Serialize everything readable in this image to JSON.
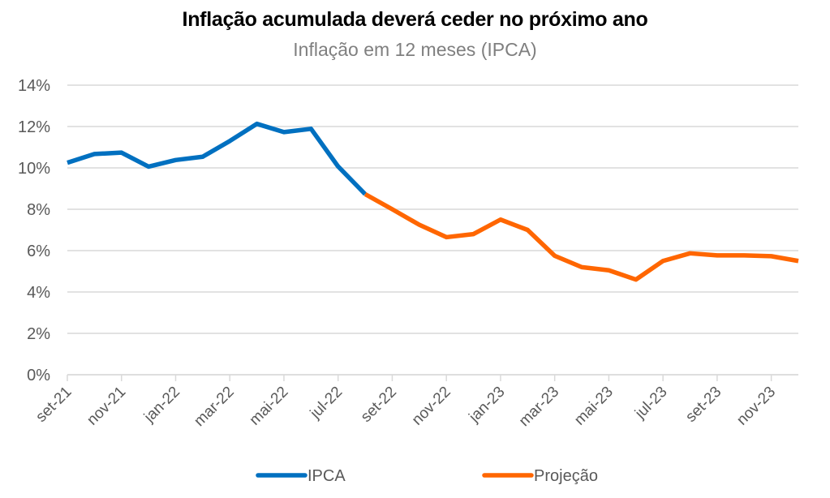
{
  "chart_data": {
    "type": "line",
    "title": "Inflação acumulada deverá ceder no próximo ano",
    "subtitle": "Inflação em 12 meses (IPCA)",
    "xlabel": "",
    "ylabel": "",
    "ylim": [
      0,
      14
    ],
    "y_ticks": [
      0,
      2,
      4,
      6,
      8,
      10,
      12,
      14
    ],
    "y_tick_labels": [
      "0%",
      "2%",
      "4%",
      "6%",
      "8%",
      "10%",
      "12%",
      "14%"
    ],
    "grid": true,
    "legend_position": "bottom",
    "categories": [
      "set-21",
      "out-21",
      "nov-21",
      "dez-21",
      "jan-22",
      "fev-22",
      "mar-22",
      "abr-22",
      "mai-22",
      "jun-22",
      "jul-22",
      "ago-22",
      "set-22",
      "out-22",
      "nov-22",
      "dez-22",
      "jan-23",
      "fev-23",
      "mar-23",
      "abr-23",
      "mai-23",
      "jun-23",
      "jul-23",
      "ago-23",
      "set-23",
      "out-23",
      "nov-23",
      "dez-23"
    ],
    "x_tick_labels": [
      "set-21",
      "nov-21",
      "jan-22",
      "mar-22",
      "mai-22",
      "jul-22",
      "set-22",
      "nov-22",
      "jan-23",
      "mar-23",
      "mai-23",
      "jul-23",
      "set-23",
      "nov-23"
    ],
    "series": [
      {
        "name": "IPCA",
        "color": "#0070C0",
        "values": [
          10.25,
          10.67,
          10.74,
          10.06,
          10.38,
          10.54,
          11.3,
          12.13,
          11.73,
          11.89,
          10.07,
          8.73,
          null,
          null,
          null,
          null,
          null,
          null,
          null,
          null,
          null,
          null,
          null,
          null,
          null,
          null,
          null,
          null
        ]
      },
      {
        "name": "Projeção",
        "color": "#FF6600",
        "values": [
          null,
          null,
          null,
          null,
          null,
          null,
          null,
          null,
          null,
          null,
          null,
          8.73,
          8.0,
          7.25,
          6.65,
          6.8,
          7.5,
          7.0,
          5.75,
          5.2,
          5.05,
          4.6,
          5.5,
          5.87,
          5.77,
          5.77,
          5.73,
          5.5
        ]
      }
    ]
  }
}
